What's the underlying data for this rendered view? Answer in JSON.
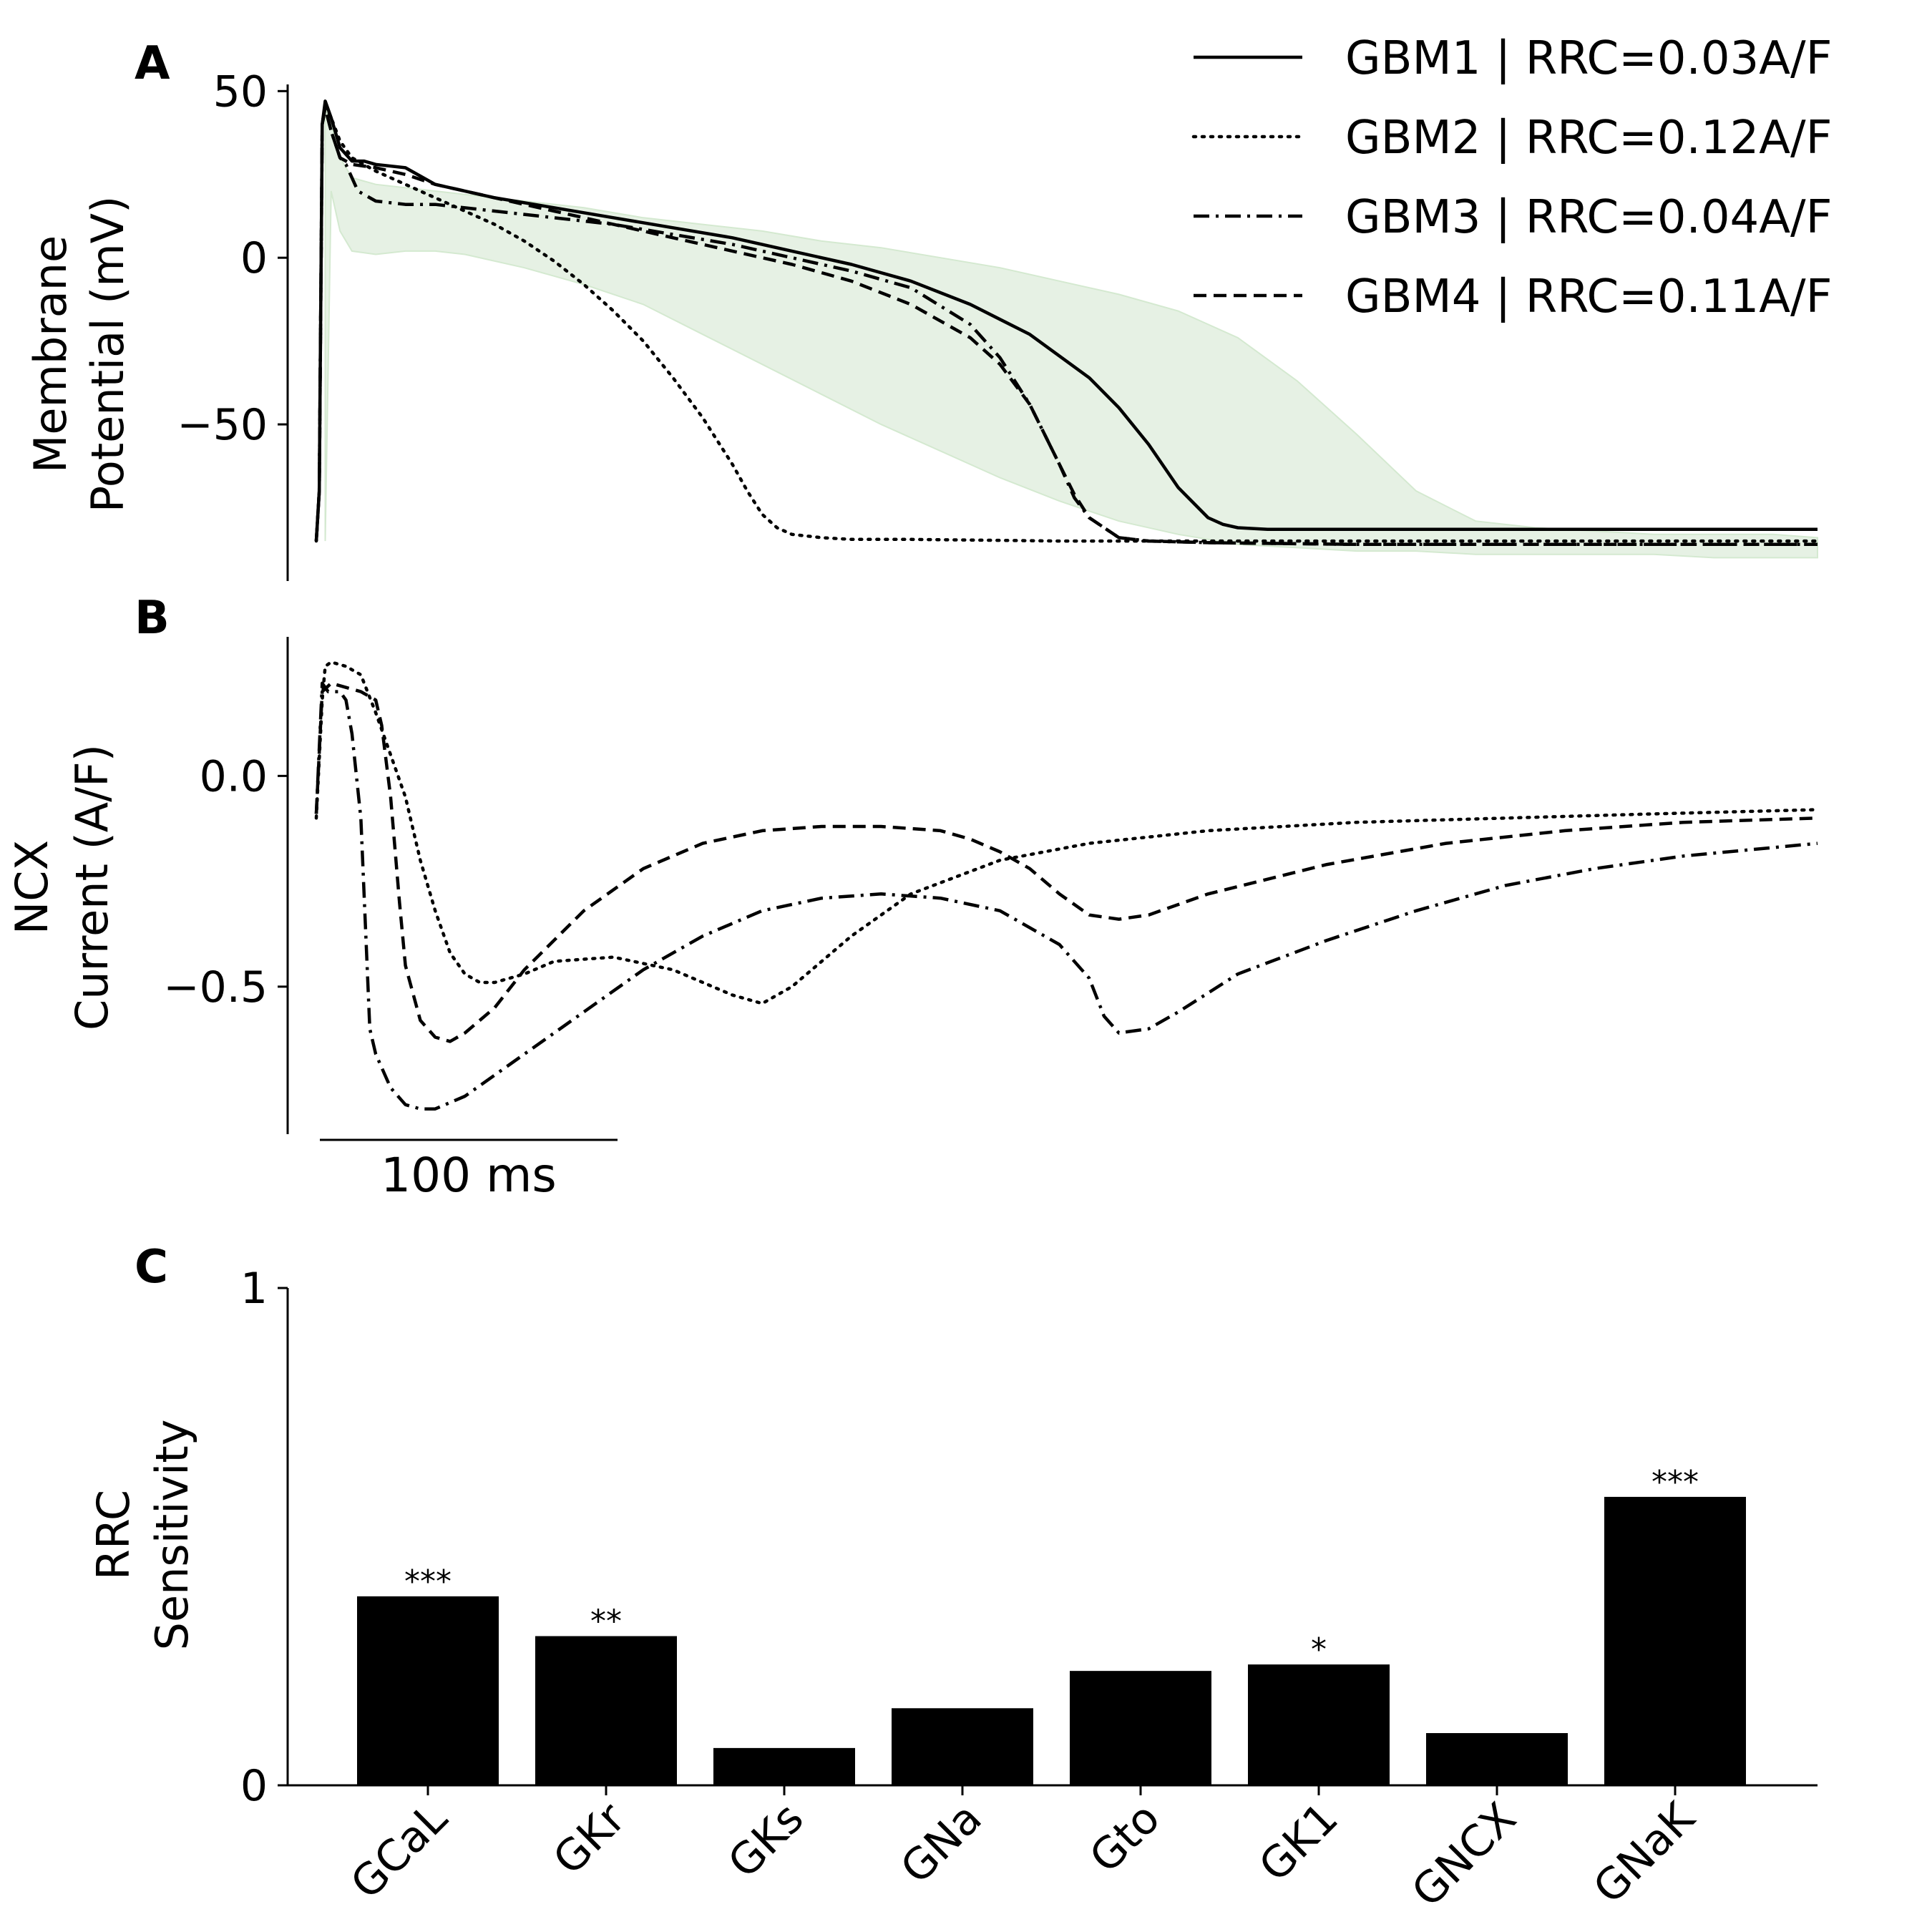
{
  "panels": {
    "A": {
      "letter": "A",
      "ylabel_line1": "Membrane",
      "ylabel_line2": "Potential (mV)",
      "yticks": [
        {
          "label": "50",
          "value": 50
        },
        {
          "label": "0",
          "value": 0
        },
        {
          "label": "−50",
          "value": -50
        }
      ]
    },
    "B": {
      "letter": "B",
      "ylabel_line1": "NCX",
      "ylabel_line2": "Current (A/F)",
      "yticks": [
        {
          "label": "0.0",
          "value": 0.0
        },
        {
          "label": "−0.5",
          "value": -0.5
        }
      ],
      "scalebar_label": "100 ms"
    },
    "C": {
      "letter": "C",
      "ylabel_line1": "RRC",
      "ylabel_line2": "Sensitivity",
      "yticks": [
        {
          "label": "1",
          "value": 1
        },
        {
          "label": "0",
          "value": 0
        }
      ]
    }
  },
  "legend": [
    {
      "label": "GBM1 | RRC=0.03A/F",
      "style": "solid"
    },
    {
      "label": "GBM2 | RRC=0.12A/F",
      "style": "dotted"
    },
    {
      "label": "GBM3 | RRC=0.04A/F",
      "style": "dashdot"
    },
    {
      "label": "GBM4 | RRC=0.11A/F",
      "style": "dashed"
    }
  ],
  "chart_data": [
    {
      "type": "line",
      "panel": "A",
      "x_unit": "ms",
      "xlim": [
        0,
        505
      ],
      "ylim": [
        -97,
        52
      ],
      "band": {
        "x": [
          3,
          5,
          8,
          12,
          20,
          30,
          40,
          50,
          70,
          90,
          110,
          130,
          150,
          170,
          190,
          210,
          230,
          250,
          270,
          290,
          310,
          330,
          350,
          370,
          390,
          410,
          430,
          450,
          470,
          490,
          505
        ],
        "lower": [
          -85,
          20,
          8,
          2,
          1,
          2,
          2,
          1,
          -3,
          -8,
          -14,
          -23,
          -32,
          -41,
          -50,
          -58,
          -66,
          -73,
          -79,
          -83,
          -86,
          -87,
          -88,
          -88,
          -89,
          -89,
          -89,
          -89,
          -90,
          -90,
          -90
        ],
        "upper": [
          45,
          40,
          30,
          24,
          22,
          21,
          20,
          19,
          17,
          15,
          12,
          10,
          8,
          5,
          3,
          0,
          -3,
          -7,
          -11,
          -16,
          -24,
          -37,
          -53,
          -70,
          -79,
          -81,
          -82,
          -83,
          -83,
          -83,
          -84
        ]
      },
      "series": [
        {
          "style": "solid",
          "x": [
            0,
            1,
            2,
            3,
            5,
            8,
            12,
            16,
            20,
            30,
            40,
            60,
            80,
            100,
            120,
            140,
            160,
            180,
            200,
            220,
            240,
            260,
            270,
            280,
            290,
            300,
            305,
            310,
            320,
            340,
            380,
            420,
            460,
            505
          ],
          "y": [
            -85,
            -70,
            40,
            47,
            42,
            33,
            29,
            29,
            28,
            27,
            22,
            18,
            15,
            12,
            9,
            6,
            2,
            -2,
            -7,
            -14,
            -23,
            -36,
            -45,
            -56,
            -69,
            -78,
            -80,
            -81,
            -81.5,
            -81.5,
            -81.5,
            -81.5,
            -81.5,
            -81.5
          ]
        },
        {
          "style": "dotted",
          "x": [
            0,
            1,
            2,
            3,
            5,
            8,
            12,
            20,
            30,
            40,
            50,
            60,
            70,
            80,
            90,
            100,
            110,
            120,
            130,
            140,
            145,
            150,
            155,
            160,
            170,
            180,
            200,
            250,
            300,
            350,
            400,
            450,
            505
          ],
          "y": [
            -85,
            -70,
            40,
            46,
            42,
            35,
            30,
            26,
            22,
            18,
            14,
            10,
            5,
            -1,
            -8,
            -16,
            -25,
            -36,
            -48,
            -62,
            -70,
            -77,
            -81,
            -83,
            -84,
            -84.5,
            -84.5,
            -85,
            -85,
            -85,
            -85,
            -85,
            -85
          ]
        },
        {
          "style": "dashdot",
          "x": [
            0,
            1,
            2,
            3,
            5,
            8,
            10,
            14,
            20,
            30,
            40,
            60,
            80,
            100,
            120,
            140,
            160,
            180,
            200,
            220,
            230,
            240,
            250,
            255,
            260,
            270,
            280,
            300,
            350,
            400,
            450,
            505
          ],
          "y": [
            -85,
            -70,
            40,
            45,
            38,
            30,
            28,
            20,
            17,
            16,
            16,
            14,
            12,
            10,
            7,
            4,
            0,
            -4,
            -9,
            -20,
            -30,
            -44,
            -62,
            -72,
            -78,
            -84,
            -85,
            -85.5,
            -86,
            -86,
            -86,
            -86
          ]
        },
        {
          "style": "dashed",
          "x": [
            0,
            1,
            2,
            3,
            5,
            8,
            12,
            20,
            30,
            40,
            60,
            80,
            100,
            120,
            140,
            160,
            180,
            200,
            220,
            230,
            240,
            250,
            255,
            260,
            270,
            280,
            300,
            350,
            400,
            450,
            505
          ],
          "y": [
            -85,
            -70,
            40,
            45,
            38,
            30,
            28,
            27,
            25,
            22,
            18,
            14,
            10,
            6,
            2,
            -2,
            -7,
            -14,
            -24,
            -32,
            -44,
            -62,
            -71,
            -78,
            -84,
            -85,
            -85.5,
            -86,
            -86,
            -86,
            -86
          ]
        }
      ]
    },
    {
      "type": "line",
      "panel": "B",
      "x_unit": "ms",
      "xlim": [
        0,
        505
      ],
      "ylim": [
        -0.85,
        0.33
      ],
      "series": [
        {
          "style": "dotted",
          "x": [
            0,
            2,
            3,
            5,
            10,
            15,
            20,
            25,
            30,
            35,
            40,
            45,
            50,
            55,
            60,
            70,
            80,
            100,
            120,
            140,
            150,
            160,
            180,
            200,
            230,
            260,
            300,
            350,
            400,
            450,
            505
          ],
          "y": [
            -0.1,
            0.18,
            0.26,
            0.27,
            0.26,
            0.24,
            0.15,
            0.05,
            -0.05,
            -0.2,
            -0.32,
            -0.42,
            -0.47,
            -0.49,
            -0.49,
            -0.47,
            -0.44,
            -0.43,
            -0.46,
            -0.52,
            -0.54,
            -0.5,
            -0.38,
            -0.28,
            -0.2,
            -0.16,
            -0.13,
            -0.11,
            -0.1,
            -0.09,
            -0.08
          ]
        },
        {
          "style": "dashdot",
          "x": [
            0,
            2,
            4,
            6,
            8,
            10,
            12,
            15,
            18,
            20,
            25,
            30,
            35,
            40,
            50,
            70,
            90,
            110,
            130,
            150,
            170,
            190,
            210,
            230,
            250,
            260,
            265,
            270,
            280,
            290,
            310,
            340,
            370,
            400,
            430,
            460,
            505
          ],
          "y": [
            -0.09,
            0.22,
            0.2,
            0.2,
            0.2,
            0.18,
            0.1,
            -0.1,
            -0.6,
            -0.66,
            -0.74,
            -0.78,
            -0.79,
            -0.79,
            -0.76,
            -0.66,
            -0.56,
            -0.46,
            -0.38,
            -0.32,
            -0.29,
            -0.28,
            -0.29,
            -0.32,
            -0.4,
            -0.48,
            -0.57,
            -0.61,
            -0.6,
            -0.56,
            -0.47,
            -0.39,
            -0.32,
            -0.26,
            -0.22,
            -0.19,
            -0.16
          ]
        },
        {
          "style": "dashed",
          "x": [
            0,
            2,
            5,
            10,
            15,
            20,
            22,
            25,
            28,
            30,
            35,
            40,
            45,
            50,
            60,
            70,
            90,
            110,
            130,
            150,
            170,
            190,
            210,
            220,
            230,
            240,
            250,
            260,
            270,
            280,
            300,
            340,
            380,
            420,
            460,
            505
          ],
          "y": [
            -0.09,
            0.2,
            0.22,
            0.21,
            0.2,
            0.18,
            0.12,
            -0.05,
            -0.3,
            -0.45,
            -0.58,
            -0.62,
            -0.63,
            -0.61,
            -0.55,
            -0.46,
            -0.32,
            -0.22,
            -0.16,
            -0.13,
            -0.12,
            -0.12,
            -0.13,
            -0.15,
            -0.18,
            -0.22,
            -0.28,
            -0.33,
            -0.34,
            -0.33,
            -0.28,
            -0.21,
            -0.16,
            -0.13,
            -0.11,
            -0.1
          ]
        }
      ]
    },
    {
      "type": "bar",
      "panel": "C",
      "ylim": [
        0,
        1
      ],
      "categories": [
        "GCaL",
        "GKr",
        "GKs",
        "GNa",
        "Gto",
        "GK1",
        "GNCX",
        "GNaK"
      ],
      "values": [
        0.38,
        0.3,
        0.075,
        0.155,
        0.23,
        0.243,
        0.105,
        0.58
      ],
      "significance": [
        "***",
        "**",
        "",
        "",
        "",
        "*",
        "",
        "***"
      ],
      "color": "#000000"
    }
  ],
  "colors": {
    "line": "#000000",
    "band": "#e6f1e4",
    "band_edge": "#d4e9d0"
  }
}
